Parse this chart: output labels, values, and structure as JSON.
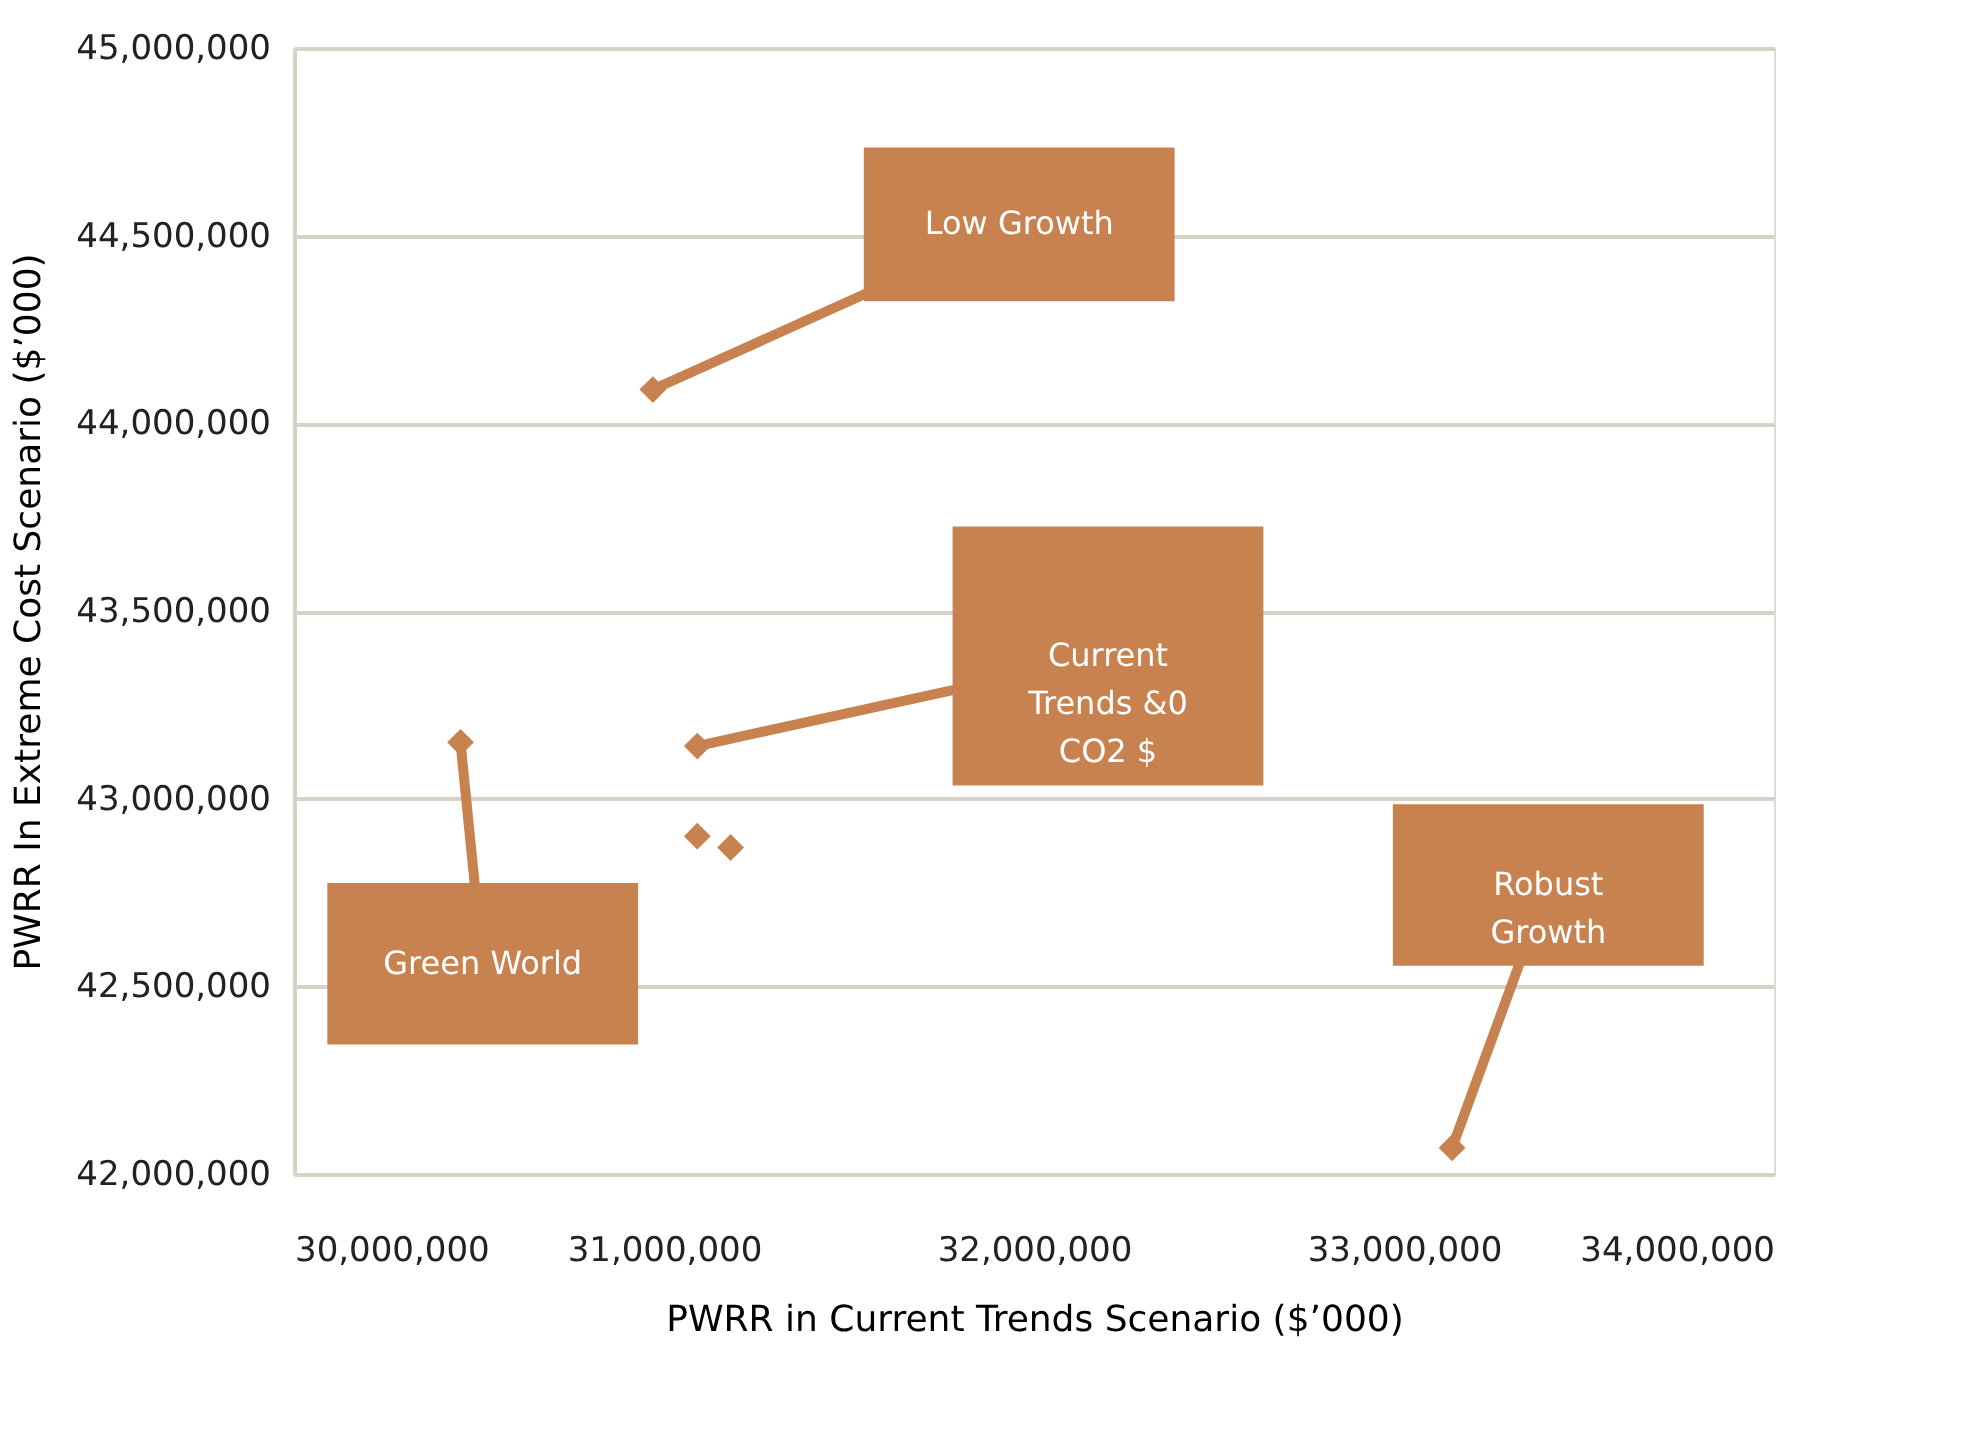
{
  "chart_data": {
    "type": "scatter",
    "xlabel": "PWRR in Current Trends Scenario ($’000)",
    "ylabel": "PWRR In Extreme Cost Scenario ($’000)",
    "x": [
      30970000,
      30450000,
      31090000,
      31090000,
      31180000,
      33130000
    ],
    "values": [
      44090000,
      43150000,
      43140000,
      42900000,
      42870000,
      42070000
    ],
    "color": "#c8824f",
    "marker": "diamond",
    "xlim": [
      30000000,
      34000000
    ],
    "xticks": [
      {
        "value": 30000000,
        "label": "30,000,000"
      },
      {
        "value": 31000000,
        "label": "31,000,000"
      },
      {
        "value": 32000000,
        "label": "32,000,000"
      },
      {
        "value": 33000000,
        "label": "33,000,000"
      },
      {
        "value": 34000000,
        "label": "34,000,000"
      }
    ],
    "ylim": [
      42000000,
      45000000
    ],
    "yticks": [
      {
        "value": 42000000,
        "label": "42,000,000"
      },
      {
        "value": 42500000,
        "label": "42,500,000"
      },
      {
        "value": 43000000,
        "label": "43,000,000"
      },
      {
        "value": 43500000,
        "label": "43,500,000"
      },
      {
        "value": 44000000,
        "label": "44,000,000"
      },
      {
        "value": 44500000,
        "label": "44,500,000"
      },
      {
        "value": 45000000,
        "label": "45,000,000"
      }
    ],
    "grid": "y",
    "annotations": [
      {
        "text": "Low Growth",
        "x": 30970000,
        "y": 44090000
      },
      "Current\nTrends &0\nCO2 $",
      "Green World",
      {
        "text": "Robust\nGrowth",
        "x": 33130000,
        "y": 42070000
      }
    ]
  }
}
